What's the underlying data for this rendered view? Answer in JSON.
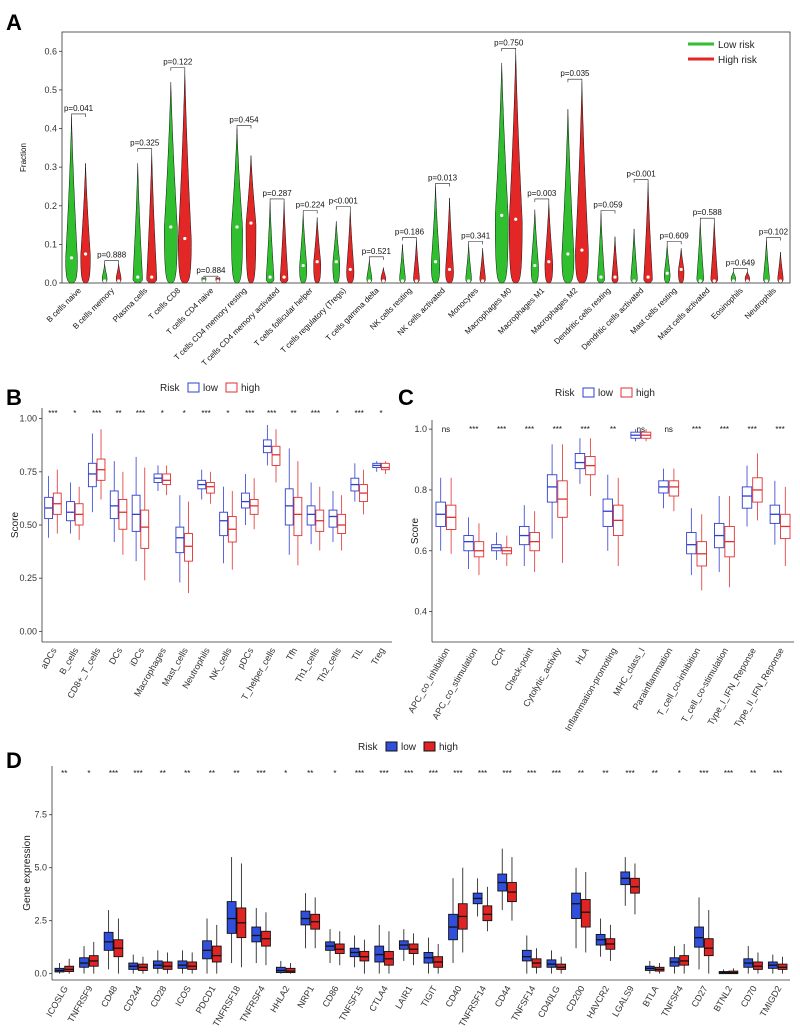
{
  "chart_data": [
    {
      "panel": "A",
      "type": "violin",
      "ylabel": "Fraction",
      "ylim": [
        0,
        0.65
      ],
      "yticks": [
        "0.0",
        "0.1",
        "0.2",
        "0.3",
        "0.4",
        "0.5",
        "0.6"
      ],
      "legend": [
        "Low risk",
        "High risk"
      ],
      "legend_colors": [
        "#2fbf2f",
        "#e32626"
      ],
      "categories": [
        "B cells naive",
        "B cells memory",
        "Plasma cells",
        "T cells CD8",
        "T cells CD4 naive",
        "T cells CD4 memory resting",
        "T cells CD4 memory activated",
        "T cells follicular helper",
        "T cells regulatory (Tregs)",
        "T cells gamma delta",
        "NK cells resting",
        "NK cells activated",
        "Monocytes",
        "Macrophages M0",
        "Macrophages M1",
        "Macrophages M2",
        "Dendritic cells resting",
        "Dendritic cells activated",
        "Mast cells resting",
        "Mast cells activated",
        "Eosinophils",
        "Neutrophils"
      ],
      "pvalues": [
        "p=0.041",
        "p=0.888",
        "p=0.325",
        "p=0.122",
        "p=0.884",
        "p=0.454",
        "p=0.287",
        "p=0.224",
        "p<0.001",
        "p=0.521",
        "p=0.186",
        "p=0.013",
        "p=0.341",
        "p=0.750",
        "p=0.003",
        "p=0.035",
        "p=0.059",
        "p<0.001",
        "p=0.609",
        "p=0.588",
        "p=0.649",
        "p=0.102"
      ],
      "low_max": [
        0.43,
        0.05,
        0.31,
        0.52,
        0.01,
        0.4,
        0.21,
        0.18,
        0.16,
        0.06,
        0.1,
        0.25,
        0.1,
        0.57,
        0.19,
        0.45,
        0.18,
        0.14,
        0.1,
        0.16,
        0.03,
        0.11
      ],
      "high_max": [
        0.31,
        0.05,
        0.34,
        0.55,
        0.01,
        0.33,
        0.21,
        0.17,
        0.19,
        0.04,
        0.11,
        0.22,
        0.09,
        0.6,
        0.21,
        0.52,
        0.12,
        0.26,
        0.09,
        0.16,
        0.03,
        0.08
      ],
      "low_median": [
        0.06,
        0.0,
        0.01,
        0.14,
        0.0,
        0.14,
        0.01,
        0.04,
        0.05,
        0.0,
        0.0,
        0.05,
        0.0,
        0.17,
        0.04,
        0.07,
        0.01,
        0.0,
        0.02,
        0.0,
        0.0,
        0.0
      ],
      "high_median": [
        0.07,
        0.0,
        0.01,
        0.11,
        0.0,
        0.15,
        0.01,
        0.05,
        0.03,
        0.0,
        0.0,
        0.03,
        0.0,
        0.16,
        0.05,
        0.08,
        0.01,
        0.01,
        0.03,
        0.0,
        0.0,
        0.0
      ]
    },
    {
      "panel": "B",
      "type": "boxplot",
      "ylabel": "Score",
      "ylim": [
        -0.05,
        1.05
      ],
      "yticks": [
        "0.00",
        "0.25",
        "0.50",
        "0.75",
        "1.00"
      ],
      "legend_title": "Risk",
      "legend": [
        "low",
        "high"
      ],
      "categories": [
        "aDCs",
        "B_cells",
        "CD8+_T_cells",
        "DCs",
        "iDCs",
        "Macrophages",
        "Mast_cells",
        "Neutrophils",
        "NK_cells",
        "pDCs",
        "T_helper_cells",
        "Tfh",
        "Th1_cells",
        "Th2_cells",
        "TIL",
        "Treg"
      ],
      "signif": [
        "***",
        "*",
        "***",
        "**",
        "***",
        "*",
        "*",
        "***",
        "*",
        "***",
        "***",
        "**",
        "***",
        "*",
        "***",
        "*"
      ],
      "low": [
        [
          0.44,
          0.53,
          0.58,
          0.63,
          0.73
        ],
        [
          0.46,
          0.52,
          0.56,
          0.61,
          0.7
        ],
        [
          0.56,
          0.68,
          0.74,
          0.79,
          0.93
        ],
        [
          0.42,
          0.53,
          0.59,
          0.66,
          0.8
        ],
        [
          0.33,
          0.47,
          0.55,
          0.64,
          0.82
        ],
        [
          0.66,
          0.7,
          0.72,
          0.74,
          0.78
        ],
        [
          0.23,
          0.37,
          0.44,
          0.49,
          0.64
        ],
        [
          0.62,
          0.67,
          0.69,
          0.71,
          0.76
        ],
        [
          0.32,
          0.45,
          0.52,
          0.56,
          0.68
        ],
        [
          0.5,
          0.58,
          0.61,
          0.65,
          0.74
        ],
        [
          0.78,
          0.84,
          0.87,
          0.9,
          0.97
        ],
        [
          0.36,
          0.5,
          0.59,
          0.67,
          0.86
        ],
        [
          0.41,
          0.5,
          0.55,
          0.59,
          0.7
        ],
        [
          0.42,
          0.49,
          0.54,
          0.57,
          0.66
        ],
        [
          0.61,
          0.66,
          0.69,
          0.72,
          0.79
        ],
        [
          0.75,
          0.77,
          0.78,
          0.79,
          0.8
        ]
      ],
      "high": [
        [
          0.46,
          0.55,
          0.6,
          0.65,
          0.76
        ],
        [
          0.43,
          0.5,
          0.55,
          0.6,
          0.68
        ],
        [
          0.62,
          0.71,
          0.76,
          0.81,
          0.95
        ],
        [
          0.36,
          0.48,
          0.56,
          0.62,
          0.75
        ],
        [
          0.24,
          0.39,
          0.49,
          0.57,
          0.77
        ],
        [
          0.64,
          0.69,
          0.71,
          0.74,
          0.78
        ],
        [
          0.18,
          0.33,
          0.4,
          0.46,
          0.61
        ],
        [
          0.6,
          0.65,
          0.68,
          0.7,
          0.75
        ],
        [
          0.29,
          0.42,
          0.48,
          0.54,
          0.66
        ],
        [
          0.48,
          0.55,
          0.59,
          0.62,
          0.72
        ],
        [
          0.7,
          0.78,
          0.83,
          0.87,
          0.95
        ],
        [
          0.31,
          0.45,
          0.55,
          0.63,
          0.8
        ],
        [
          0.38,
          0.47,
          0.52,
          0.57,
          0.68
        ],
        [
          0.38,
          0.46,
          0.5,
          0.55,
          0.64
        ],
        [
          0.55,
          0.61,
          0.65,
          0.69,
          0.76
        ],
        [
          0.74,
          0.76,
          0.77,
          0.79,
          0.8
        ]
      ]
    },
    {
      "panel": "C",
      "type": "boxplot",
      "ylabel": "Score",
      "ylim": [
        0.3,
        1.03
      ],
      "yticks": [
        "0.4",
        "0.6",
        "0.8",
        "1.0"
      ],
      "legend_title": "Risk",
      "legend": [
        "low",
        "high"
      ],
      "categories": [
        "APC_co_inhibition",
        "APC_co_stimulation",
        "CCR",
        "Check-point",
        "Cytolytic_activity",
        "HLA",
        "Inflammation-promoting",
        "MHC_class_I",
        "Parainflammation",
        "T_cell_co-inhibition",
        "T_cell_co-stimulation",
        "Type_I_IFN_Reponse",
        "Type_II_IFN_Reponse"
      ],
      "signif": [
        "ns",
        "***",
        "***",
        "***",
        "***",
        "***",
        "**",
        "ns",
        "ns",
        "***",
        "***",
        "***",
        "***"
      ],
      "low": [
        [
          0.6,
          0.68,
          0.72,
          0.76,
          0.84
        ],
        [
          0.54,
          0.6,
          0.63,
          0.65,
          0.71
        ],
        [
          0.57,
          0.6,
          0.61,
          0.62,
          0.66
        ],
        [
          0.55,
          0.62,
          0.65,
          0.68,
          0.75
        ],
        [
          0.64,
          0.76,
          0.81,
          0.85,
          0.95
        ],
        [
          0.82,
          0.87,
          0.89,
          0.92,
          0.97
        ],
        [
          0.6,
          0.68,
          0.73,
          0.77,
          0.85
        ],
        [
          0.96,
          0.97,
          0.98,
          0.99,
          1.0
        ],
        [
          0.74,
          0.79,
          0.81,
          0.83,
          0.87
        ],
        [
          0.52,
          0.59,
          0.62,
          0.66,
          0.74
        ],
        [
          0.53,
          0.61,
          0.65,
          0.69,
          0.78
        ],
        [
          0.68,
          0.74,
          0.78,
          0.81,
          0.88
        ],
        [
          0.62,
          0.69,
          0.72,
          0.75,
          0.83
        ]
      ],
      "high": [
        [
          0.59,
          0.67,
          0.71,
          0.75,
          0.84
        ],
        [
          0.52,
          0.58,
          0.6,
          0.63,
          0.69
        ],
        [
          0.55,
          0.59,
          0.6,
          0.61,
          0.65
        ],
        [
          0.53,
          0.6,
          0.63,
          0.66,
          0.73
        ],
        [
          0.56,
          0.71,
          0.77,
          0.83,
          0.95
        ],
        [
          0.78,
          0.85,
          0.88,
          0.91,
          0.97
        ],
        [
          0.55,
          0.65,
          0.7,
          0.75,
          0.84
        ],
        [
          0.96,
          0.97,
          0.98,
          0.99,
          1.0
        ],
        [
          0.73,
          0.78,
          0.81,
          0.83,
          0.87
        ],
        [
          0.47,
          0.55,
          0.59,
          0.63,
          0.72
        ],
        [
          0.48,
          0.58,
          0.63,
          0.68,
          0.78
        ],
        [
          0.7,
          0.76,
          0.8,
          0.84,
          0.92
        ],
        [
          0.55,
          0.64,
          0.68,
          0.72,
          0.81
        ]
      ]
    },
    {
      "panel": "D",
      "type": "boxplot",
      "ylabel": "Gene expression",
      "ylim": [
        -0.3,
        9.8
      ],
      "yticks": [
        "0.0",
        "2.5",
        "5.0",
        "7.5"
      ],
      "legend_title": "Risk",
      "legend": [
        "low",
        "high"
      ],
      "categories": [
        "ICOSLG",
        "TNFRSF9",
        "CD48",
        "CD244",
        "CD28",
        "ICOS",
        "PDCD1",
        "TNFRSF18",
        "TNFRSF4",
        "HHLA2",
        "NRP1",
        "CD86",
        "TNFSF15",
        "CTLA4",
        "LAIR1",
        "TIGIT",
        "CD40",
        "TNFRSF14",
        "CD44",
        "TNFSF14",
        "CD40LG",
        "CD200",
        "HAVCR2",
        "LGALS9",
        "BTLA",
        "TNFSF4",
        "CD27",
        "BTNL2",
        "CD70",
        "TMIGD2"
      ],
      "signif": [
        "**",
        "*",
        "***",
        "***",
        "**",
        "**",
        "**",
        "**",
        "***",
        "*",
        "**",
        "*",
        "***",
        "***",
        "***",
        "***",
        "***",
        "***",
        "***",
        "***",
        "***",
        "**",
        "**",
        "***",
        "**",
        "*",
        "***",
        "***",
        "**",
        "***"
      ],
      "low": [
        [
          0.0,
          0.08,
          0.15,
          0.25,
          0.5
        ],
        [
          0.0,
          0.3,
          0.5,
          0.75,
          1.3
        ],
        [
          0.2,
          1.1,
          1.5,
          1.95,
          3.0
        ],
        [
          0.0,
          0.2,
          0.35,
          0.5,
          0.9
        ],
        [
          0.0,
          0.25,
          0.4,
          0.6,
          1.1
        ],
        [
          0.0,
          0.25,
          0.4,
          0.6,
          1.1
        ],
        [
          0.0,
          0.7,
          1.1,
          1.55,
          2.6
        ],
        [
          0.5,
          1.9,
          2.6,
          3.4,
          5.5
        ],
        [
          0.5,
          1.5,
          1.8,
          2.2,
          3.1
        ],
        [
          0.0,
          0.05,
          0.15,
          0.3,
          0.6
        ],
        [
          1.2,
          2.3,
          2.6,
          2.95,
          3.8
        ],
        [
          0.5,
          1.1,
          1.3,
          1.5,
          2.1
        ],
        [
          0.3,
          0.8,
          1.0,
          1.2,
          1.8
        ],
        [
          0.0,
          0.55,
          0.9,
          1.3,
          2.3
        ],
        [
          0.6,
          1.15,
          1.35,
          1.55,
          2.1
        ],
        [
          0.0,
          0.5,
          0.75,
          1.0,
          1.7
        ],
        [
          0.5,
          1.6,
          2.2,
          2.8,
          4.5
        ],
        [
          2.7,
          3.3,
          3.55,
          3.8,
          4.5
        ],
        [
          3.0,
          3.9,
          4.3,
          4.7,
          5.9
        ],
        [
          0.0,
          0.6,
          0.8,
          1.1,
          1.8
        ],
        [
          0.0,
          0.3,
          0.45,
          0.65,
          1.1
        ],
        [
          1.2,
          2.6,
          3.3,
          3.8,
          5.0
        ],
        [
          0.8,
          1.35,
          1.6,
          1.85,
          2.6
        ],
        [
          3.2,
          4.2,
          4.5,
          4.8,
          5.5
        ],
        [
          0.0,
          0.15,
          0.25,
          0.35,
          0.6
        ],
        [
          0.0,
          0.35,
          0.55,
          0.75,
          1.3
        ],
        [
          0.2,
          1.25,
          1.7,
          2.2,
          3.6
        ],
        [
          0.0,
          0.0,
          0.05,
          0.1,
          0.2
        ],
        [
          0.0,
          0.3,
          0.5,
          0.7,
          1.3
        ],
        [
          0.0,
          0.25,
          0.4,
          0.55,
          0.9
        ]
      ],
      "high": [
        [
          0.0,
          0.1,
          0.2,
          0.35,
          0.7
        ],
        [
          0.0,
          0.35,
          0.6,
          0.85,
          1.5
        ],
        [
          0.0,
          0.8,
          1.2,
          1.6,
          2.6
        ],
        [
          0.0,
          0.15,
          0.3,
          0.45,
          0.8
        ],
        [
          0.0,
          0.2,
          0.35,
          0.55,
          1.0
        ],
        [
          0.0,
          0.2,
          0.35,
          0.55,
          1.0
        ],
        [
          0.0,
          0.55,
          0.85,
          1.3,
          2.3
        ],
        [
          0.3,
          1.7,
          2.4,
          3.1,
          5.2
        ],
        [
          0.4,
          1.3,
          1.65,
          2.0,
          2.9
        ],
        [
          0.0,
          0.05,
          0.12,
          0.25,
          0.5
        ],
        [
          1.2,
          2.1,
          2.45,
          2.8,
          3.6
        ],
        [
          0.4,
          0.95,
          1.15,
          1.4,
          2.0
        ],
        [
          0.0,
          0.6,
          0.8,
          1.05,
          1.6
        ],
        [
          0.0,
          0.4,
          0.7,
          1.05,
          2.0
        ],
        [
          0.4,
          0.95,
          1.15,
          1.4,
          1.9
        ],
        [
          0.0,
          0.3,
          0.55,
          0.8,
          1.4
        ],
        [
          1.0,
          2.1,
          2.7,
          3.3,
          5.0
        ],
        [
          2.0,
          2.5,
          2.8,
          3.2,
          4.1
        ],
        [
          2.5,
          3.4,
          3.85,
          4.3,
          5.5
        ],
        [
          0.0,
          0.3,
          0.5,
          0.7,
          1.2
        ],
        [
          0.0,
          0.2,
          0.3,
          0.45,
          0.8
        ],
        [
          1.0,
          2.2,
          2.9,
          3.5,
          4.8
        ],
        [
          0.6,
          1.15,
          1.4,
          1.65,
          2.3
        ],
        [
          2.8,
          3.8,
          4.1,
          4.5,
          5.2
        ],
        [
          0.0,
          0.12,
          0.2,
          0.3,
          0.5
        ],
        [
          0.0,
          0.4,
          0.6,
          0.85,
          1.4
        ],
        [
          0.0,
          0.85,
          1.2,
          1.65,
          3.0
        ],
        [
          0.0,
          0.0,
          0.05,
          0.12,
          0.25
        ],
        [
          0.0,
          0.2,
          0.35,
          0.55,
          1.0
        ],
        [
          0.0,
          0.2,
          0.3,
          0.45,
          0.8
        ]
      ]
    }
  ]
}
